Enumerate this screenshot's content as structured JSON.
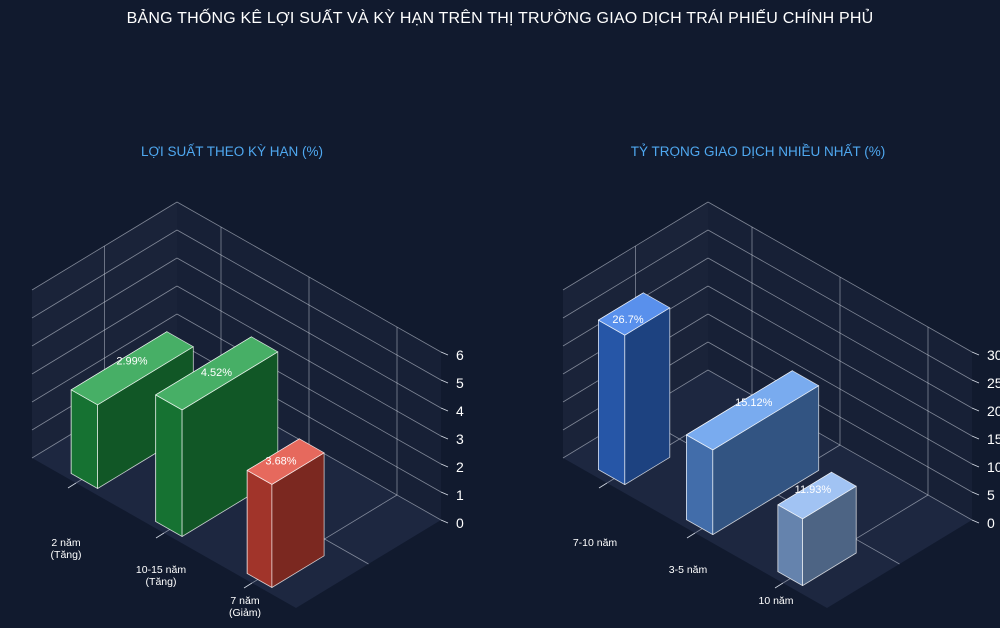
{
  "page_title": "BẢNG THỐNG KÊ LỢI SUẤT VÀ KỲ HẠN TRÊN THỊ TRƯỜNG GIAO DỊCH TRÁI PHIẾU CHÍNH PHỦ",
  "chart_data": [
    {
      "type": "bar",
      "title": "LỢI SUẤT THEO KỲ HẠN (%)",
      "categories": [
        [
          "2 năm",
          "(Tăng)"
        ],
        [
          "10-15 năm",
          "(Tăng)"
        ],
        [
          "7 năm",
          "(Giảm)"
        ]
      ],
      "values": [
        2.99,
        4.52,
        3.68
      ],
      "value_labels": [
        "2.99%",
        "4.52%",
        "3.68%"
      ],
      "colors": [
        "#1f9e45",
        "#1f9e45",
        "#e0483a"
      ],
      "yticks": [
        0,
        1,
        2,
        3,
        4,
        5,
        6
      ],
      "ylim": [
        0,
        6
      ],
      "grid": true
    },
    {
      "type": "bar",
      "title": "TỶ TRỌNG GIAO DỊCH NHIỀU NHẤT (%)",
      "categories": [
        [
          "7-10 năm"
        ],
        [
          "3-5 năm"
        ],
        [
          "10 năm"
        ]
      ],
      "values": [
        26.7,
        15.12,
        11.93
      ],
      "value_labels": [
        "26.7%",
        "15.12%",
        "11.93%"
      ],
      "colors": [
        "#3578e8",
        "#5b98ec",
        "#8cb6f0"
      ],
      "yticks": [
        0,
        5,
        10,
        15,
        20,
        25,
        30
      ],
      "ylim": [
        0,
        30
      ],
      "grid": true
    }
  ]
}
